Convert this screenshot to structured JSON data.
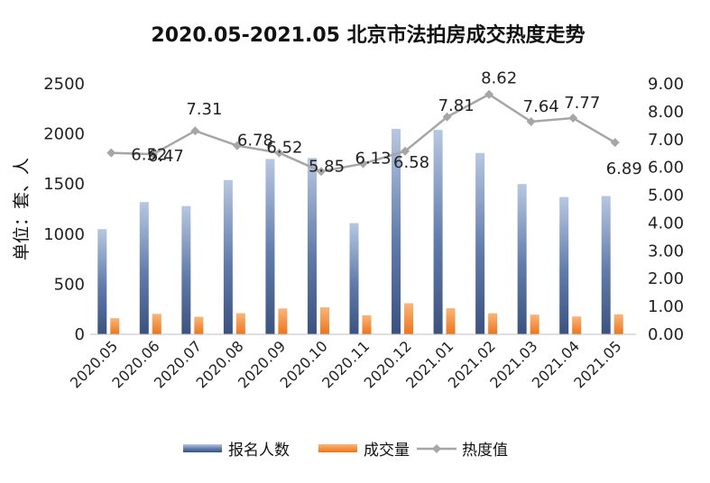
{
  "chart_data": {
    "type": "bar",
    "title": "2020.05-2021.05 北京市法拍房成交热度走势",
    "ylabel": "单位：套、人",
    "ylim": [
      0,
      2500
    ],
    "yticks": [
      "0",
      "500",
      "1000",
      "1500",
      "2000",
      "2500"
    ],
    "y2lim": [
      0,
      9
    ],
    "y2ticks": [
      "0.00",
      "1.00",
      "2.00",
      "3.00",
      "4.00",
      "5.00",
      "6.00",
      "7.00",
      "8.00",
      "9.00"
    ],
    "categories": [
      "2020.05",
      "2020.06",
      "2020.07",
      "2020.08",
      "2020.09",
      "2020.10",
      "2020.11",
      "2020.12",
      "2021.01",
      "2021.02",
      "2021.03",
      "2021.04",
      "2021.05"
    ],
    "series": [
      {
        "name": "报名人数",
        "type": "bar",
        "axis": "left",
        "color": "#4a6799",
        "values": [
          1050,
          1320,
          1280,
          1540,
          1750,
          1760,
          1110,
          2050,
          2040,
          1810,
          1500,
          1370,
          1380
        ]
      },
      {
        "name": "成交量",
        "type": "bar",
        "axis": "left",
        "color": "#f07f22",
        "values": [
          161,
          204,
          175,
          211,
          258,
          270,
          190,
          310,
          260,
          210,
          196,
          178,
          200
        ]
      },
      {
        "name": "热度值",
        "type": "line",
        "axis": "right",
        "color": "#a6a6a6",
        "values": [
          6.52,
          6.47,
          7.31,
          6.78,
          6.52,
          5.85,
          6.13,
          6.58,
          7.81,
          8.62,
          7.64,
          7.77,
          6.89
        ],
        "labels": [
          "6.52",
          "6.47",
          "7.31",
          "6.78",
          "6.52",
          "5.85",
          "6.13",
          "6.58",
          "7.81",
          "8.62",
          "7.64",
          "7.77",
          "6.89"
        ]
      }
    ],
    "legend": "bottom",
    "grid": false
  }
}
